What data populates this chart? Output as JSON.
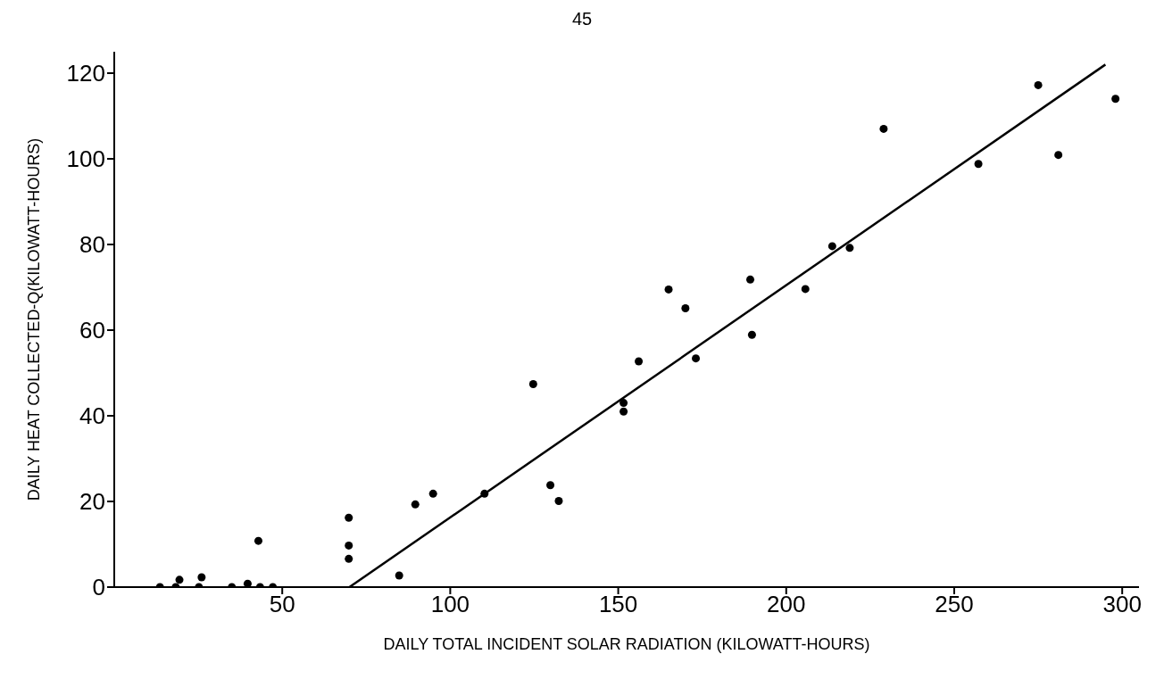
{
  "chart_data": {
    "type": "scatter",
    "xlabel": "DAILY TOTAL INCIDENT SOLAR RADIATION (KILOWATT-HOURS)",
    "ylabel": "DAILY HEAT COLLECTED-Q(KILOWATT-HOURS)",
    "annotations": [
      "45"
    ],
    "xlim": [
      0,
      305
    ],
    "xticks": [
      50,
      100,
      150,
      200,
      250,
      300
    ],
    "ylim": [
      0,
      125
    ],
    "yticks": [
      0,
      20,
      40,
      60,
      80,
      100,
      120
    ],
    "grid": false,
    "legend": false,
    "marker": "circle",
    "series": [
      {
        "color": "#000000",
        "x": [
          13.6,
          18.3,
          19.4,
          25.2,
          26,
          35,
          39.7,
          42.9,
          43.4,
          47.2,
          69.8,
          69.8,
          69.8,
          84.8,
          89.6,
          94.9,
          110.2,
          124.7,
          129.8,
          132.3,
          151.6,
          151.6,
          156.1,
          165,
          170,
          173.1,
          189.3,
          189.8,
          205.7,
          213.7,
          218.9,
          229,
          257.2,
          275,
          281,
          298
        ],
        "values": [
          0,
          0,
          1.7,
          0,
          2.3,
          0,
          0.8,
          10.8,
          0,
          0,
          16.2,
          9.7,
          6.6,
          2.7,
          19.3,
          21.8,
          21.8,
          47.4,
          23.8,
          20.1,
          43,
          41,
          52.7,
          69.5,
          65.1,
          53.4,
          71.8,
          58.9,
          69.6,
          79.6,
          79.2,
          107,
          98.8,
          117.2,
          100.9,
          114
        ]
      },
      {
        "type": "line",
        "color": "#000000",
        "marker": "none",
        "line_style": "solid",
        "x": [
          70,
          295
        ],
        "values": [
          0,
          122
        ]
      }
    ]
  }
}
